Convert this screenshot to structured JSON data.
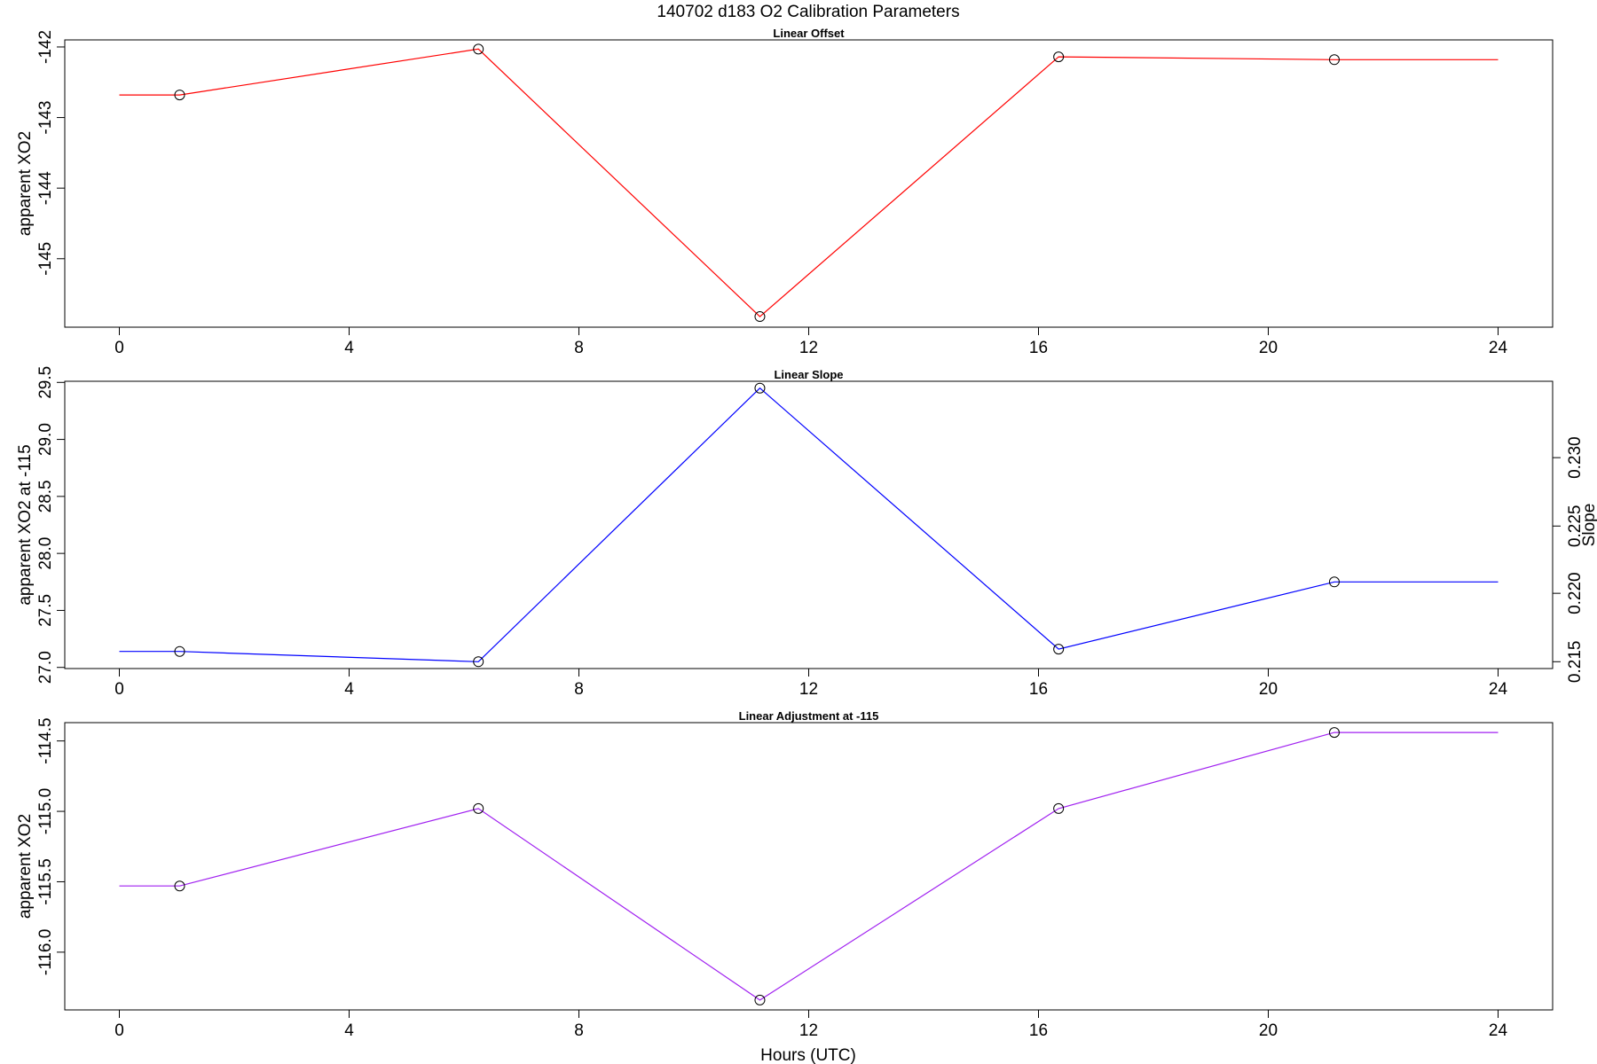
{
  "title": "140702   d183   O2 Calibration Parameters",
  "xlabel": "Hours (UTC)",
  "chart_data": [
    {
      "type": "line",
      "title": "Linear Offset",
      "ylabel": "apparent XO2",
      "x": [
        0,
        1.05,
        6.25,
        11.15,
        16.35,
        21.15,
        24
      ],
      "marker_indices": [
        1,
        2,
        3,
        4,
        5
      ],
      "series": [
        {
          "values": [
            -142.68,
            -142.68,
            -142.03,
            -145.82,
            -142.14,
            -142.18,
            -142.18
          ]
        }
      ],
      "xlim": [
        -0.95,
        24.95
      ],
      "ylim": [
        -145.97,
        -141.9
      ],
      "xticks": [
        0,
        4,
        8,
        12,
        16,
        20,
        24
      ],
      "yticks": [
        -142,
        -143,
        -144,
        -145
      ],
      "color": "#ff0000"
    },
    {
      "type": "line",
      "title": "Linear Slope",
      "ylabel": "apparent XO2 at -115",
      "y2label": "Slope",
      "x": [
        0,
        1.05,
        6.25,
        11.15,
        16.35,
        21.15,
        24
      ],
      "marker_indices": [
        1,
        2,
        3,
        4,
        5
      ],
      "series": [
        {
          "values": [
            27.14,
            27.14,
            27.05,
            29.45,
            27.16,
            27.75,
            27.75
          ]
        }
      ],
      "xlim": [
        -0.95,
        24.95
      ],
      "ylim": [
        26.99,
        29.51
      ],
      "xticks": [
        0,
        4,
        8,
        12,
        16,
        20,
        24
      ],
      "yticks": [
        27.0,
        27.5,
        28.0,
        28.5,
        29.0,
        29.5
      ],
      "y2ticks": [
        0.215,
        0.22,
        0.225,
        0.23
      ],
      "y2tick_positions": [
        27.05,
        27.65,
        28.24,
        28.84
      ],
      "color": "#0000ff"
    },
    {
      "type": "line",
      "title": "Linear Adjustment at -115",
      "ylabel": "apparent XO2",
      "x": [
        0,
        1.05,
        6.25,
        11.15,
        16.35,
        21.15,
        24
      ],
      "marker_indices": [
        1,
        2,
        3,
        4,
        5
      ],
      "series": [
        {
          "values": [
            -115.53,
            -115.53,
            -114.98,
            -116.34,
            -114.98,
            -114.44,
            -114.44
          ]
        }
      ],
      "xlim": [
        -0.95,
        24.95
      ],
      "ylim": [
        -116.41,
        -114.37
      ],
      "xticks": [
        0,
        4,
        8,
        12,
        16,
        20,
        24
      ],
      "yticks": [
        -114.5,
        -115.0,
        -115.5,
        -116.0
      ],
      "color": "#a020f0"
    }
  ]
}
